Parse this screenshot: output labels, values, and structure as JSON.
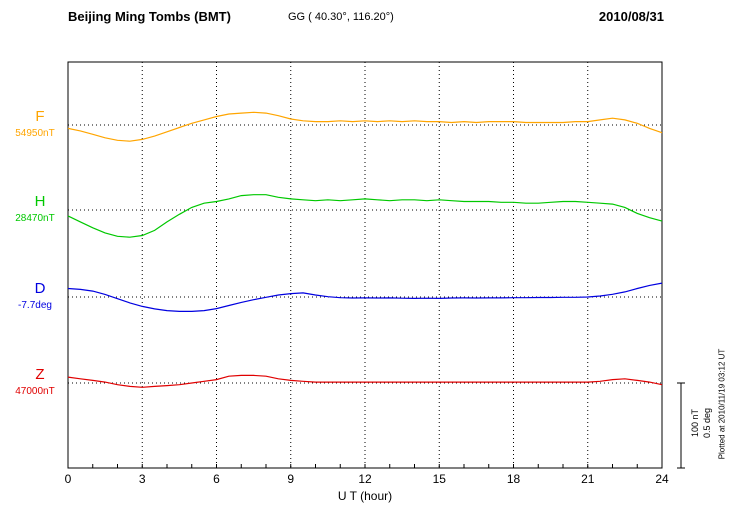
{
  "header": {
    "station": "Beijing Ming Tombs (BMT)",
    "coords": "GG ( 40.30°, 116.20°)",
    "date": "2010/08/31"
  },
  "scale_bar": {
    "nt_label": "100 nT",
    "deg_label": "0.5 deg"
  },
  "footer": {
    "plotted_at": "Plotted at 2010/11/19 03:12 UT"
  },
  "chart_data": {
    "type": "line",
    "title": "Beijing Ming Tombs (BMT) magnetogram 2010/08/31",
    "xlabel": "U T (hour)",
    "x_range": [
      0,
      24
    ],
    "x_ticks": [
      "0",
      "3",
      "6",
      "9",
      "12",
      "15",
      "18",
      "21",
      "24"
    ],
    "grid": "vertical dotted lines every 3 hours; dotted horizontal baseline per component",
    "legend": "component letter and baseline value at left margin, colored per trace",
    "scale": {
      "bar_nT": 100,
      "bar_deg": 0.5
    },
    "series": [
      {
        "name": "F",
        "unit": "nT",
        "baseline": 54950,
        "baseline_label": "54950nT",
        "color": "#FFA500",
        "points": [
          [
            0,
            -4
          ],
          [
            0.5,
            -7
          ],
          [
            1,
            -11
          ],
          [
            1.5,
            -15
          ],
          [
            2,
            -18
          ],
          [
            2.5,
            -19
          ],
          [
            3,
            -17
          ],
          [
            3.5,
            -13
          ],
          [
            4,
            -8
          ],
          [
            4.5,
            -3
          ],
          [
            5,
            2
          ],
          [
            5.5,
            6
          ],
          [
            6,
            10
          ],
          [
            6.5,
            13
          ],
          [
            7,
            14
          ],
          [
            7.5,
            15
          ],
          [
            8,
            14
          ],
          [
            8.5,
            11
          ],
          [
            9,
            7
          ],
          [
            9.5,
            5
          ],
          [
            10,
            4
          ],
          [
            10.5,
            4
          ],
          [
            11,
            5
          ],
          [
            11.5,
            4
          ],
          [
            12,
            5
          ],
          [
            12.5,
            4
          ],
          [
            13,
            5
          ],
          [
            13.5,
            4
          ],
          [
            14,
            5
          ],
          [
            14.5,
            4
          ],
          [
            15,
            4
          ],
          [
            15.5,
            3
          ],
          [
            16,
            4
          ],
          [
            16.5,
            3
          ],
          [
            17,
            4
          ],
          [
            17.5,
            4
          ],
          [
            18,
            4
          ],
          [
            18.5,
            3
          ],
          [
            19,
            3
          ],
          [
            19.5,
            3
          ],
          [
            20,
            3
          ],
          [
            20.5,
            4
          ],
          [
            21,
            4
          ],
          [
            21.5,
            6
          ],
          [
            22,
            8
          ],
          [
            22.5,
            6
          ],
          [
            23,
            2
          ],
          [
            23.5,
            -4
          ],
          [
            24,
            -9
          ]
        ]
      },
      {
        "name": "H",
        "unit": "nT",
        "baseline": 28470,
        "baseline_label": "28470nT",
        "color": "#00C800",
        "points": [
          [
            0,
            -7
          ],
          [
            0.5,
            -14
          ],
          [
            1,
            -21
          ],
          [
            1.5,
            -27
          ],
          [
            2,
            -31
          ],
          [
            2.5,
            -32
          ],
          [
            3,
            -30
          ],
          [
            3.5,
            -24
          ],
          [
            4,
            -14
          ],
          [
            4.5,
            -5
          ],
          [
            5,
            3
          ],
          [
            5.5,
            8
          ],
          [
            6,
            10
          ],
          [
            6.5,
            13
          ],
          [
            7,
            17
          ],
          [
            7.5,
            18
          ],
          [
            8,
            18
          ],
          [
            8.5,
            15
          ],
          [
            9,
            13
          ],
          [
            9.5,
            12
          ],
          [
            10,
            11
          ],
          [
            10.5,
            12
          ],
          [
            11,
            11
          ],
          [
            11.5,
            12
          ],
          [
            12,
            13
          ],
          [
            12.5,
            12
          ],
          [
            13,
            11
          ],
          [
            13.5,
            12
          ],
          [
            14,
            12
          ],
          [
            14.5,
            11
          ],
          [
            15,
            12
          ],
          [
            15.5,
            11
          ],
          [
            16,
            10
          ],
          [
            16.5,
            10
          ],
          [
            17,
            10
          ],
          [
            17.5,
            9
          ],
          [
            18,
            9
          ],
          [
            18.5,
            8
          ],
          [
            19,
            8
          ],
          [
            19.5,
            9
          ],
          [
            20,
            10
          ],
          [
            20.5,
            10
          ],
          [
            21,
            9
          ],
          [
            21.5,
            8
          ],
          [
            22,
            7
          ],
          [
            22.5,
            3
          ],
          [
            23,
            -4
          ],
          [
            23.5,
            -9
          ],
          [
            24,
            -13
          ]
        ]
      },
      {
        "name": "D",
        "unit": "deg",
        "baseline": -7.7,
        "baseline_label": "-7.7deg",
        "color": "#0000E0",
        "points": [
          [
            0,
            0.05
          ],
          [
            0.5,
            0.045
          ],
          [
            1,
            0.035
          ],
          [
            1.5,
            0.015
          ],
          [
            2,
            -0.01
          ],
          [
            2.5,
            -0.035
          ],
          [
            3,
            -0.055
          ],
          [
            3.5,
            -0.07
          ],
          [
            4,
            -0.08
          ],
          [
            4.5,
            -0.085
          ],
          [
            5,
            -0.085
          ],
          [
            5.5,
            -0.08
          ],
          [
            6,
            -0.068
          ],
          [
            6.5,
            -0.05
          ],
          [
            7,
            -0.032
          ],
          [
            7.5,
            -0.016
          ],
          [
            8,
            -0.002
          ],
          [
            8.5,
            0.012
          ],
          [
            9,
            0.02
          ],
          [
            9.5,
            0.024
          ],
          [
            10,
            0.012
          ],
          [
            10.5,
            0.002
          ],
          [
            11,
            -0.004
          ],
          [
            11.5,
            -0.006
          ],
          [
            12,
            -0.005
          ],
          [
            12.5,
            -0.006
          ],
          [
            13,
            -0.005
          ],
          [
            13.5,
            -0.007
          ],
          [
            14,
            -0.008
          ],
          [
            14.5,
            -0.007
          ],
          [
            15,
            -0.008
          ],
          [
            15.5,
            -0.006
          ],
          [
            16,
            -0.005
          ],
          [
            16.5,
            -0.006
          ],
          [
            17,
            -0.005
          ],
          [
            17.5,
            -0.005
          ],
          [
            18,
            -0.004
          ],
          [
            18.5,
            -0.004
          ],
          [
            19,
            -0.003
          ],
          [
            19.5,
            -0.003
          ],
          [
            20,
            -0.002
          ],
          [
            20.5,
            -0.002
          ],
          [
            21,
            0
          ],
          [
            21.5,
            0.006
          ],
          [
            22,
            0.016
          ],
          [
            22.5,
            0.03
          ],
          [
            23,
            0.05
          ],
          [
            23.5,
            0.068
          ],
          [
            24,
            0.082
          ]
        ]
      },
      {
        "name": "Z",
        "unit": "nT",
        "baseline": 47000,
        "baseline_label": "47000nT",
        "color": "#E00000",
        "points": [
          [
            0,
            7
          ],
          [
            0.5,
            5
          ],
          [
            1,
            3
          ],
          [
            1.5,
            1
          ],
          [
            2,
            -2
          ],
          [
            2.5,
            -4
          ],
          [
            3,
            -5
          ],
          [
            3.5,
            -4
          ],
          [
            4,
            -3
          ],
          [
            4.5,
            -2
          ],
          [
            5,
            0
          ],
          [
            5.5,
            2
          ],
          [
            6,
            4
          ],
          [
            6.5,
            8
          ],
          [
            7,
            9
          ],
          [
            7.5,
            9
          ],
          [
            8,
            8
          ],
          [
            8.5,
            5
          ],
          [
            9,
            3
          ],
          [
            9.5,
            2
          ],
          [
            10,
            1
          ],
          [
            10.5,
            1
          ],
          [
            11,
            1
          ],
          [
            11.5,
            1
          ],
          [
            12,
            1
          ],
          [
            12.5,
            1
          ],
          [
            13,
            1
          ],
          [
            13.5,
            1
          ],
          [
            14,
            1
          ],
          [
            14.5,
            1
          ],
          [
            15,
            1
          ],
          [
            15.5,
            1
          ],
          [
            16,
            1
          ],
          [
            16.5,
            1
          ],
          [
            17,
            1
          ],
          [
            17.5,
            1
          ],
          [
            18,
            1
          ],
          [
            18.5,
            1
          ],
          [
            19,
            1
          ],
          [
            19.5,
            1
          ],
          [
            20,
            1
          ],
          [
            20.5,
            1
          ],
          [
            21,
            1
          ],
          [
            21.5,
            2
          ],
          [
            22,
            4
          ],
          [
            22.5,
            5
          ],
          [
            23,
            3
          ],
          [
            23.5,
            1
          ],
          [
            24,
            -2
          ]
        ]
      }
    ]
  }
}
